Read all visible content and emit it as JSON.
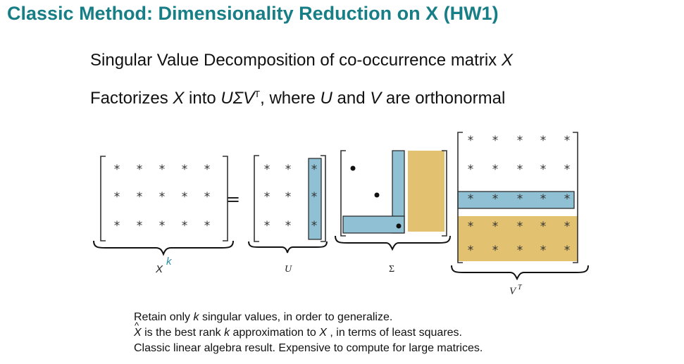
{
  "slide": {
    "title": "Classic Method: Dimensionality Reduction on X (HW1)",
    "line1": {
      "prefix": "Singular Value Decomposition of co-occurrence matrix ",
      "var": "X"
    },
    "line2": {
      "prefix": "Factorizes ",
      "var_x": "X",
      "mid": " into ",
      "formula": "UΣV",
      "sup": "T",
      "after": ", where ",
      "var_u": "U",
      "and": " and ",
      "var_v": "V",
      "suffix": " are orthonormal"
    }
  },
  "diagram": {
    "star_glyph": "*",
    "equals": "=",
    "labels": {
      "x": "X",
      "x_sup": "k",
      "u": "U",
      "sigma": "Σ",
      "vt": "V",
      "vt_sup": "T"
    },
    "colors": {
      "blue_fill": "#8fc0d4",
      "gold_fill": "#e2c170",
      "star": "#333333",
      "x_sup": "#2f8fa8"
    }
  },
  "notes": {
    "n1_pre": "Retain only ",
    "n1_k": "k",
    "n1_post": " singular values, in order to generalize.",
    "n2_xhat": "X",
    "n2_mid": " is the best rank ",
    "n2_k": "k",
    "n2_mid2": " approximation to ",
    "n2_x": "X",
    "n2_post": " , in terms of least squares.",
    "n3": "Classic linear algebra result. Expensive to compute for large matrices."
  }
}
